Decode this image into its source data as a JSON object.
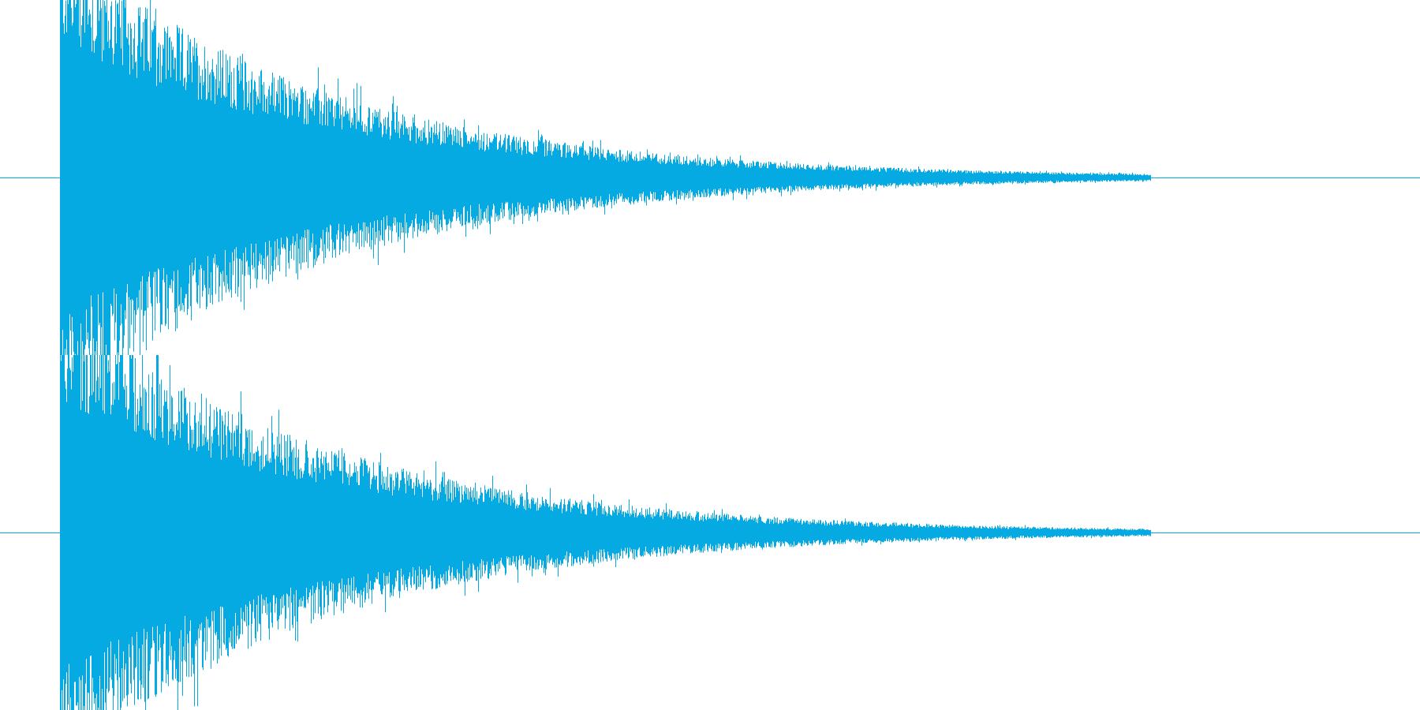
{
  "waveform": {
    "color": "#06aae2",
    "background": "#ffffff",
    "channels": [
      {
        "name": "",
        "envelope_note": "",
        "baseline_visible": true
      },
      {
        "name": "",
        "envelope_note": "",
        "baseline_visible": true
      }
    ],
    "decay": {
      "attack_onset_fraction": 0.042,
      "audible_end_fraction": 0.81,
      "decay_rate": 5.2
    }
  }
}
